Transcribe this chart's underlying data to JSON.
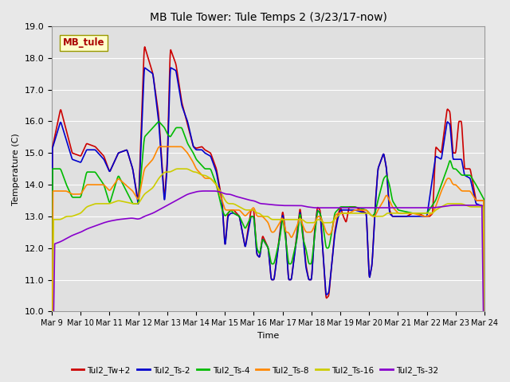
{
  "title": "MB Tule Tower: Tule Temps 2 (3/23/17-now)",
  "xlabel": "Time",
  "ylabel": "Temperature (C)",
  "ylim": [
    10.0,
    19.0
  ],
  "yticks": [
    10.0,
    11.0,
    12.0,
    13.0,
    14.0,
    15.0,
    16.0,
    17.0,
    18.0,
    19.0
  ],
  "xtick_labels": [
    "Mar 9",
    "Mar 10",
    "Mar 11",
    "Mar 12",
    "Mar 13",
    "Mar 14",
    "Mar 15",
    "Mar 16",
    "Mar 17",
    "Mar 18",
    "Mar 19",
    "Mar 20",
    "Mar 21",
    "Mar 22",
    "Mar 23",
    "Mar 24"
  ],
  "station_label": "MB_tule",
  "series_colors": {
    "Tul2_Tw+2": "#cc0000",
    "Tul2_Ts-2": "#0000cc",
    "Tul2_Ts-4": "#00bb00",
    "Tul2_Ts-8": "#ff8800",
    "Tul2_Ts-16": "#cccc00",
    "Tul2_Ts-32": "#8800cc"
  },
  "background_color": "#e8e8e8",
  "plot_bg_color": "#e0e0e0",
  "grid_color": "#ffffff",
  "figsize": [
    6.4,
    4.8
  ],
  "dpi": 100
}
